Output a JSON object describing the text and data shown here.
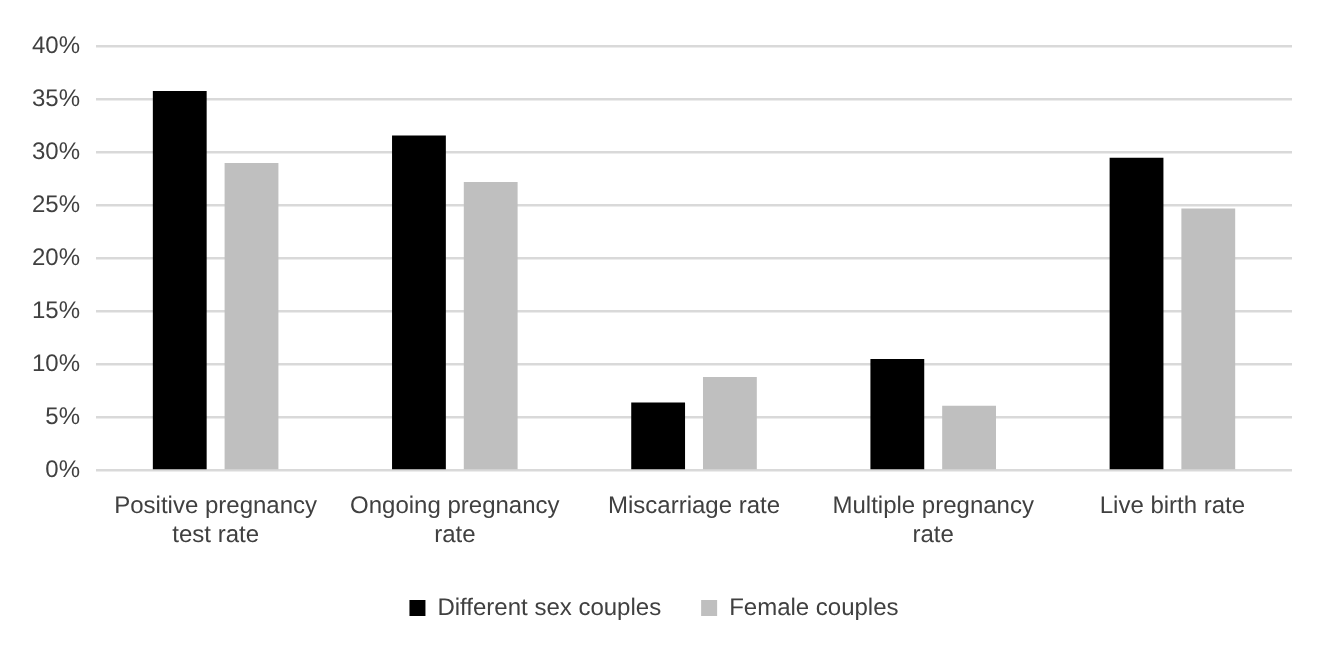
{
  "chart_data": {
    "type": "bar",
    "categories": [
      "Positive pregnancy test rate",
      "Ongoing pregnancy rate",
      "Miscarriage rate",
      "Multiple pregnancy rate",
      "Live birth rate"
    ],
    "series": [
      {
        "name": "Different sex couples",
        "color": "#000000",
        "values": [
          35.8,
          31.6,
          6.4,
          10.5,
          29.5
        ]
      },
      {
        "name": "Female couples",
        "color": "#bfbfbf",
        "values": [
          29.0,
          27.2,
          8.8,
          6.1,
          24.7
        ]
      }
    ],
    "ylim": [
      0,
      40
    ],
    "yticks": [
      {
        "value": 0,
        "label": "0%"
      },
      {
        "value": 5,
        "label": "5%"
      },
      {
        "value": 10,
        "label": "10%"
      },
      {
        "value": 15,
        "label": "15%"
      },
      {
        "value": 20,
        "label": "20%"
      },
      {
        "value": 25,
        "label": "25%"
      },
      {
        "value": 30,
        "label": "30%"
      },
      {
        "value": 35,
        "label": "35%"
      },
      {
        "value": 40,
        "label": "40%"
      }
    ],
    "grid": "y",
    "legend": "bottom"
  }
}
